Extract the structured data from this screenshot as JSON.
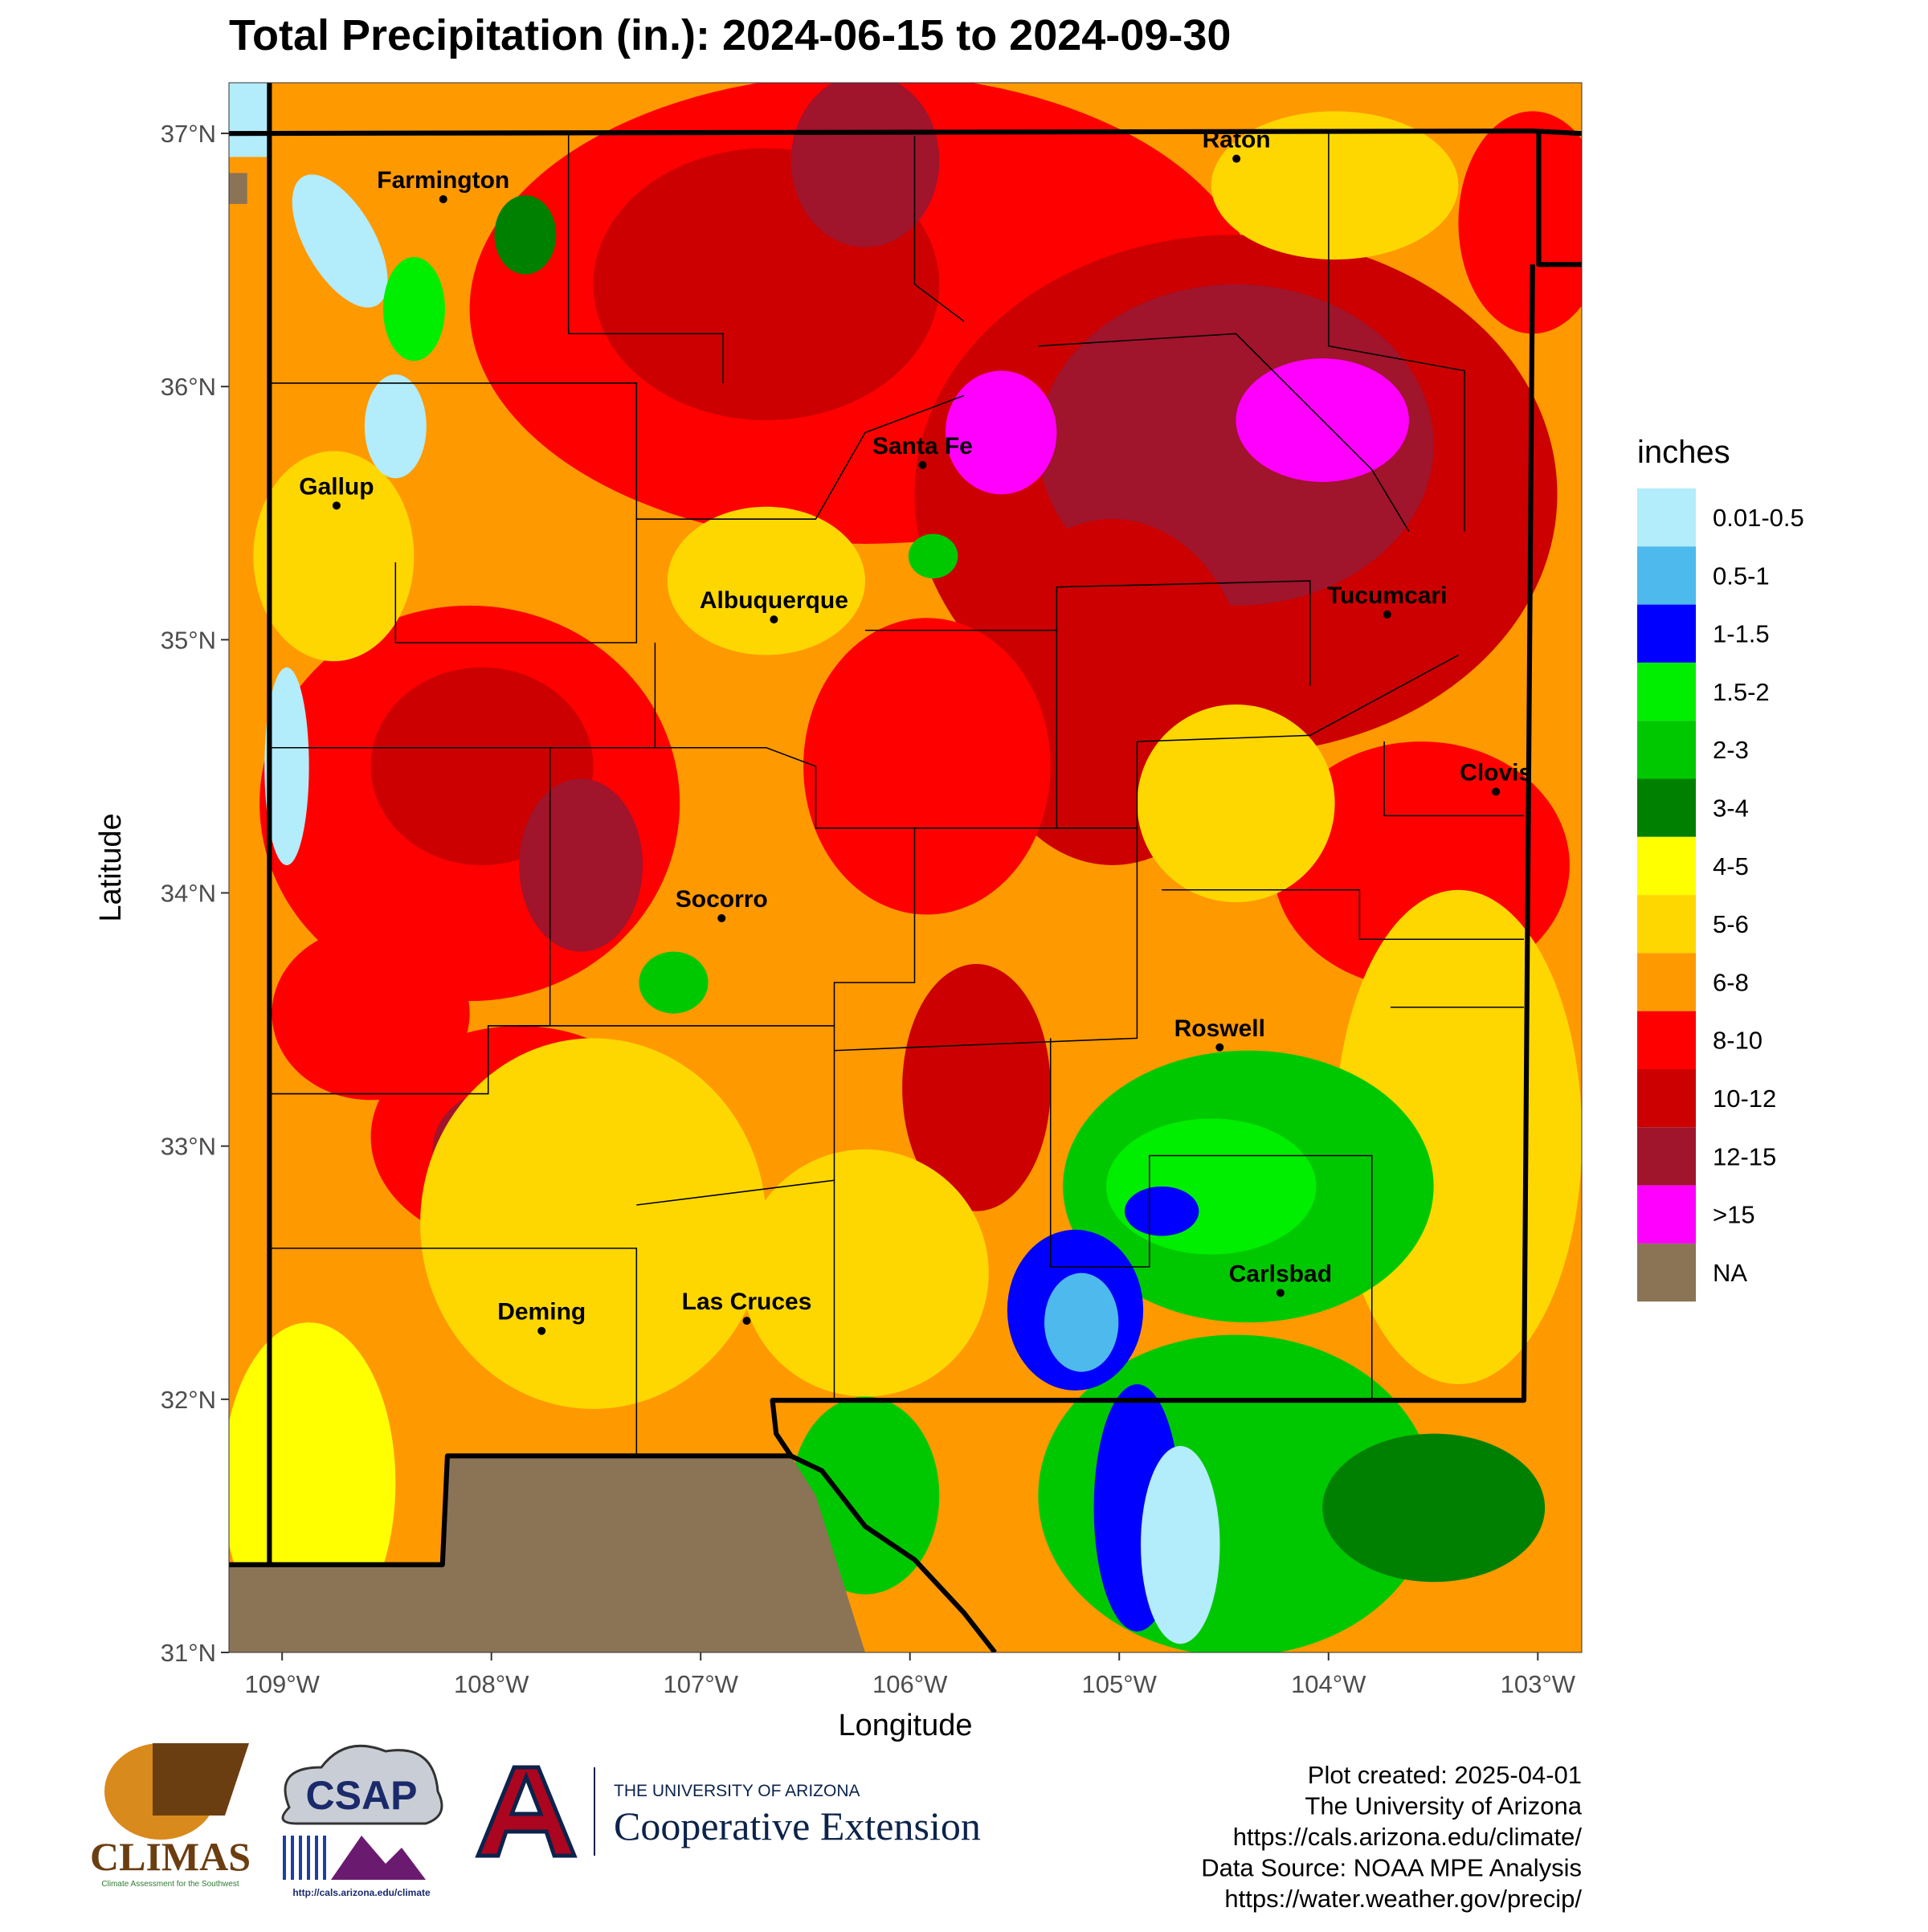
{
  "chart_data": {
    "type": "map",
    "title": "Total Precipitation (in.): 2024-06-15 to 2024-09-30",
    "x_label": "Longitude",
    "y_label": "Latitude",
    "xlim": [
      -109.254,
      -102.79
    ],
    "ylim": [
      31,
      37.2
    ],
    "xticks": [
      {
        "value": -109,
        "label": "109°W"
      },
      {
        "value": -108,
        "label": "108°W"
      },
      {
        "value": -107,
        "label": "107°W"
      },
      {
        "value": -106,
        "label": "106°W"
      },
      {
        "value": -105,
        "label": "105°W"
      },
      {
        "value": -104,
        "label": "104°W"
      },
      {
        "value": -103,
        "label": "103°W"
      }
    ],
    "yticks": [
      {
        "value": 31,
        "label": "31°N"
      },
      {
        "value": 32,
        "label": "32°N"
      },
      {
        "value": 33,
        "label": "33°N"
      },
      {
        "value": 34,
        "label": "34°N"
      },
      {
        "value": 35,
        "label": "35°N"
      },
      {
        "value": 36,
        "label": "36°N"
      },
      {
        "value": 37,
        "label": "37°N"
      }
    ],
    "cities": [
      {
        "name": "Farmington",
        "lon": -108.23,
        "lat": 36.74
      },
      {
        "name": "Raton",
        "lon": -104.44,
        "lat": 36.9
      },
      {
        "name": "Santa Fe",
        "lon": -105.94,
        "lat": 35.69
      },
      {
        "name": "Gallup",
        "lon": -108.74,
        "lat": 35.53
      },
      {
        "name": "Albuquerque",
        "lon": -106.65,
        "lat": 35.08
      },
      {
        "name": "Tucumcari",
        "lon": -103.72,
        "lat": 35.1
      },
      {
        "name": "Clovis",
        "lon": -103.2,
        "lat": 34.4
      },
      {
        "name": "Socorro",
        "lon": -106.9,
        "lat": 33.9
      },
      {
        "name": "Roswell",
        "lon": -104.52,
        "lat": 33.39
      },
      {
        "name": "Carlsbad",
        "lon": -104.23,
        "lat": 32.42
      },
      {
        "name": "Deming",
        "lon": -107.76,
        "lat": 32.27
      },
      {
        "name": "Las Cruces",
        "lon": -106.78,
        "lat": 32.31
      }
    ],
    "legend": {
      "title": "inches",
      "items": [
        {
          "label": "0.01-0.5",
          "color": "#b3ecfa"
        },
        {
          "label": "0.5-1",
          "color": "#4db9ec"
        },
        {
          "label": "1-1.5",
          "color": "#0000ff"
        },
        {
          "label": "1.5-2",
          "color": "#00ee00"
        },
        {
          "label": "2-3",
          "color": "#00c800"
        },
        {
          "label": "3-4",
          "color": "#008000"
        },
        {
          "label": "4-5",
          "color": "#ffff00"
        },
        {
          "label": "5-6",
          "color": "#ffd700"
        },
        {
          "label": "6-8",
          "color": "#ff9900"
        },
        {
          "label": "8-10",
          "color": "#ff0000"
        },
        {
          "label": "10-12",
          "color": "#cc0000"
        },
        {
          "label": "12-15",
          "color": "#a0142c"
        },
        {
          "label": ">15",
          "color": "#ff00ff"
        },
        {
          "label": "NA",
          "color": "#8b7355"
        }
      ]
    }
  },
  "footer": [
    "Plot created: 2025-04-01",
    "The University of Arizona",
    "https://cals.arizona.edu/climate/",
    "Data Source: NOAA MPE Analysis",
    "https://water.weather.gov/precip/"
  ],
  "logos": {
    "climas": "CLIMAS",
    "climas_sub": "Climate Assessment for the Southwest",
    "csap": "CSAP",
    "csap_url": "http://cals.arizona.edu/climate",
    "ua_line1": "THE UNIVERSITY OF ARIZONA",
    "ua_line2": "Cooperative Extension"
  }
}
